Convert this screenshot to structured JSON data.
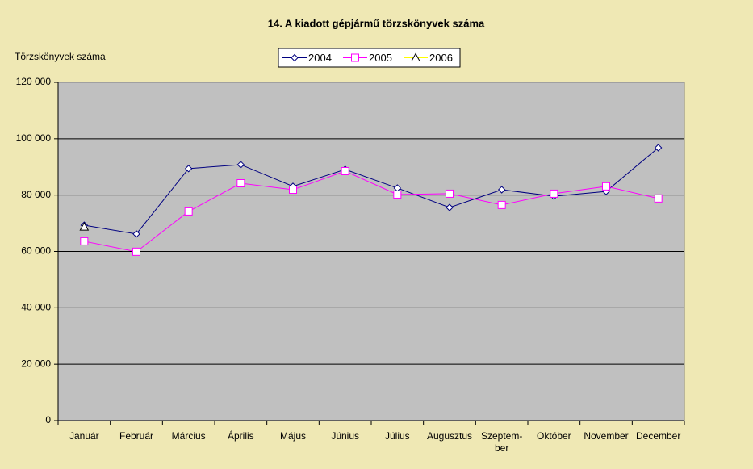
{
  "chart_data": {
    "type": "line",
    "title": "14. A kiadott gépjármű törzskönyvek száma",
    "y_label": "Törzskönyvek száma",
    "categories": [
      "Január",
      "Február",
      "Március",
      "Április",
      "Május",
      "Június",
      "Július",
      "Augusztus",
      "Szeptem-\nber",
      "Október",
      "November",
      "December"
    ],
    "series": [
      {
        "name": "2004",
        "color": "#000080",
        "marker": "diamond",
        "values": [
          69300,
          66200,
          89400,
          90800,
          83100,
          89100,
          82500,
          75600,
          81900,
          79600,
          81300,
          96800
        ]
      },
      {
        "name": "2005",
        "color": "#ff00ff",
        "marker": "square",
        "values": [
          63600,
          59900,
          74200,
          84200,
          81900,
          88500,
          80200,
          80500,
          76500,
          80500,
          83100,
          78800
        ]
      },
      {
        "name": "2006",
        "color": "#ffff00",
        "marker": "triangle",
        "values": [
          68700,
          null,
          null,
          null,
          null,
          null,
          null,
          null,
          null,
          null,
          null,
          null
        ]
      }
    ],
    "ylim": [
      0,
      120000
    ],
    "yticks": [
      0,
      {
        "value": 20000,
        "label": "20 000"
      },
      {
        "value": 40000,
        "label": "40 000"
      },
      {
        "value": 60000,
        "label": "60 000"
      },
      {
        "value": 80000,
        "label": "80 000"
      },
      {
        "value": 100000,
        "label": "100 000"
      },
      {
        "value": 120000,
        "label": "120 000"
      }
    ],
    "grid": true,
    "legend": "top"
  }
}
